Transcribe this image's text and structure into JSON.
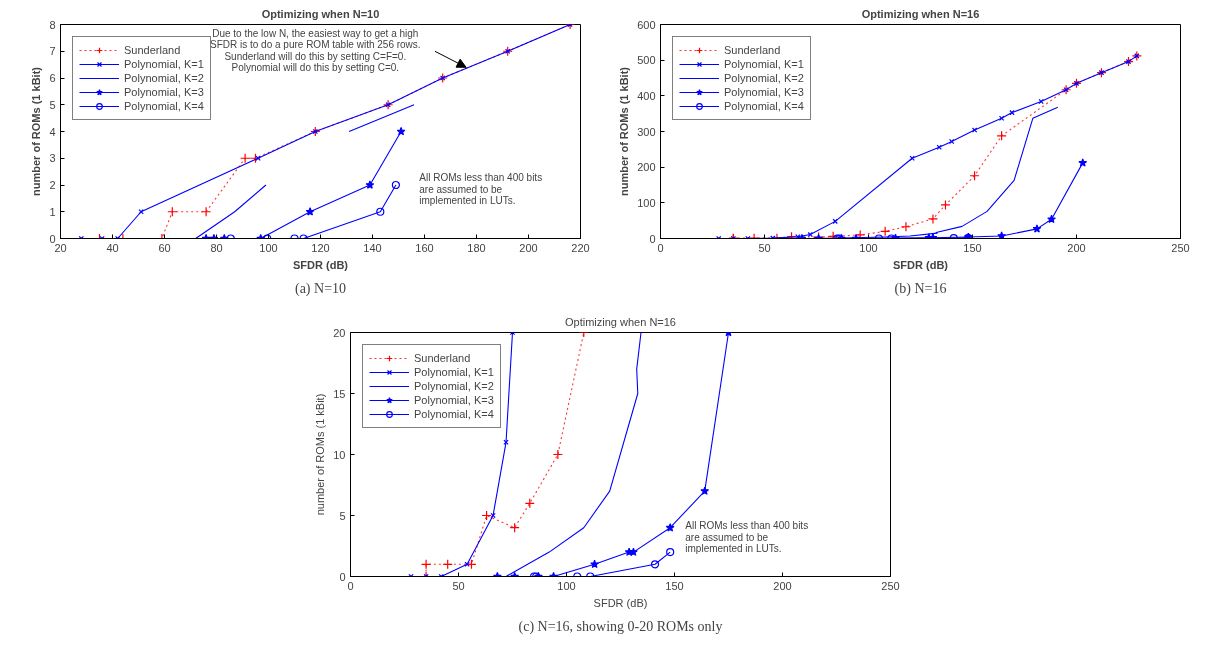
{
  "chart_data": [
    {
      "type": "line",
      "title": "Optimizing when N=10",
      "xlabel": "SFDR (dB)",
      "ylabel": "number of ROMs (1 kBit)",
      "xlim": [
        20,
        220
      ],
      "xticks": [
        20,
        40,
        60,
        80,
        100,
        120,
        140,
        160,
        180,
        200,
        220
      ],
      "ylim": [
        0,
        8
      ],
      "yticks": [
        0,
        1,
        2,
        3,
        4,
        5,
        6,
        7,
        8
      ],
      "legend": "top left",
      "series": [
        {
          "name": "Sunderland",
          "color": "#ff0000",
          "line_style": "dotted",
          "marker": "cross",
          "x": [
            35,
            44,
            59,
            63,
            76,
            91,
            95,
            118,
            146,
            167,
            192,
            216
          ],
          "values": [
            0,
            0,
            0,
            1,
            1,
            3,
            3,
            4,
            5,
            6,
            7,
            8
          ]
        },
        {
          "name": "Polynomial, K=1",
          "color": "#0000ff",
          "line_style": "solid",
          "marker": "x",
          "x": [
            28,
            36,
            42,
            51,
            96,
            118,
            146,
            167,
            192,
            216
          ],
          "values": [
            0,
            0,
            0,
            1,
            3,
            4,
            5,
            6,
            7,
            8
          ]
        },
        {
          "name": "Polynomial, K=2",
          "color": "#0000ff",
          "line_style": "solid",
          "marker": "none",
          "x": [
            28,
            42,
            60,
            68,
            72,
            87,
            99,
            115,
            131,
            156
          ],
          "values": [
            0,
            0,
            0,
            0,
            0,
            1,
            2,
            null,
            4,
            5
          ]
        },
        {
          "name": "Polynomial, K=3",
          "color": "#0000ff",
          "line_style": "solid",
          "marker": "star",
          "x": [
            76,
            79,
            83,
            97,
            116,
            139,
            151
          ],
          "values": [
            0,
            0,
            0,
            0,
            1,
            2,
            4
          ]
        },
        {
          "name": "Polynomial, K=4",
          "color": "#0000ff",
          "line_style": "solid",
          "marker": "circle",
          "x": [
            85.5,
            99.5,
            110,
            113.5,
            143,
            149
          ],
          "values": [
            0,
            0,
            0,
            0,
            1,
            2
          ]
        }
      ],
      "annotations": [
        "Due to the low N, the easiest way to get a high\nSFDR is to do a pure ROM table with 256 rows.\nSunderland will do this by setting C=F=0.\nPolynomial will do this by setting C=0.",
        "All ROMs less than 400 bits\nare assumed to be\nimplemented in LUTs.",
        "(a) N=10"
      ]
    },
    {
      "type": "line",
      "title": "Optimizing when N=16",
      "xlabel": "SFDR (dB)",
      "ylabel": "number of ROMs (1 kBit)",
      "xlim": [
        0,
        250
      ],
      "xticks": [
        0,
        50,
        100,
        150,
        200,
        250
      ],
      "ylim": [
        0,
        600
      ],
      "yticks": [
        0,
        100,
        200,
        300,
        400,
        500,
        600
      ],
      "legend": "top left",
      "series": [
        {
          "name": "Sunderland",
          "color": "#ff0000",
          "line_style": "dotted",
          "marker": "cross",
          "x": [
            35,
            35,
            45,
            56,
            63,
            76,
            83,
            96,
            108,
            118,
            131,
            137,
            151,
            164,
            195,
            200,
            212,
            225,
            229
          ],
          "values": [
            0,
            1,
            1,
            1,
            5,
            4,
            6,
            10,
            20,
            33,
            55,
            94,
            176,
            288,
            417,
            435,
            465,
            496,
            512
          ]
        },
        {
          "name": "Polynomial, K=1",
          "color": "#0000ff",
          "line_style": "solid",
          "marker": "x",
          "x": [
            28,
            35,
            42,
            54,
            66,
            72,
            84,
            121,
            134,
            140,
            151,
            164,
            169,
            183,
            195,
            200,
            212,
            225,
            229
          ],
          "values": [
            0,
            0,
            0,
            1,
            5,
            11,
            48,
            225,
            256,
            272,
            304,
            337,
            353,
            384,
            417,
            435,
            465,
            496,
            512
          ]
        },
        {
          "name": "Polynomial, K=2",
          "color": "#0000ff",
          "line_style": "solid",
          "marker": "none",
          "x": [
            42,
            59,
            72,
            92,
            108,
            120,
            133,
            132.5,
            145,
            157,
            170,
            179,
            191
          ],
          "values": [
            0,
            0,
            0,
            2,
            4,
            7,
            15,
            17,
            34,
            76,
            163,
            337,
            368
          ]
        },
        {
          "name": "Polynomial, K=3",
          "color": "#0000ff",
          "line_style": "solid",
          "marker": "star",
          "x": [
            68,
            76,
            87,
            94,
            113,
            129,
            131,
            148,
            164,
            181,
            188,
            203
          ],
          "values": [
            0,
            0,
            0,
            0,
            1,
            2,
            2,
            4,
            7,
            27,
            54,
            212
          ]
        },
        {
          "name": "Polynomial, K=4",
          "color": "#0000ff",
          "line_style": "solid",
          "marker": "circle",
          "x": [
            85,
            86,
            105,
            111,
            141,
            148
          ],
          "values": [
            0,
            0,
            0,
            0,
            1,
            2
          ]
        }
      ],
      "annotations": [
        "(b) N=16"
      ]
    },
    {
      "type": "line",
      "title": "Optimizing when N=16",
      "xlabel": "SFDR (dB)",
      "ylabel": "number of ROMs (1 kBit)",
      "xlim": [
        0,
        250
      ],
      "xticks": [
        0,
        50,
        100,
        150,
        200,
        250
      ],
      "ylim": [
        0,
        20
      ],
      "yticks": [
        0,
        5,
        10,
        15,
        20
      ],
      "legend": "top left",
      "series": [
        {
          "name": "Sunderland",
          "color": "#ff0000",
          "line_style": "dotted",
          "marker": "cross",
          "x": [
            35,
            35,
            45,
            56,
            63,
            76,
            83,
            96,
            108
          ],
          "values": [
            0,
            1,
            1,
            1,
            5,
            4,
            6,
            10,
            20
          ]
        },
        {
          "name": "Polynomial, K=1",
          "color": "#0000ff",
          "line_style": "solid",
          "marker": "x",
          "x": [
            28,
            35,
            42,
            54,
            66,
            72,
            75
          ],
          "values": [
            0,
            0,
            0,
            1,
            5,
            11,
            20
          ]
        },
        {
          "name": "Polynomial, K=2",
          "color": "#0000ff",
          "line_style": "solid",
          "marker": "none",
          "x": [
            42,
            59,
            72,
            92,
            108,
            120,
            133,
            132.5,
            134.5
          ],
          "values": [
            0,
            0,
            0,
            2,
            4,
            7,
            15,
            17,
            20
          ]
        },
        {
          "name": "Polynomial, K=3",
          "color": "#0000ff",
          "line_style": "solid",
          "marker": "star",
          "x": [
            68,
            76,
            87,
            94,
            113,
            129,
            131,
            148,
            164,
            175
          ],
          "values": [
            0,
            0,
            0,
            0,
            1,
            2,
            2,
            4,
            7,
            20
          ]
        },
        {
          "name": "Polynomial, K=4",
          "color": "#0000ff",
          "line_style": "solid",
          "marker": "circle",
          "x": [
            85,
            86,
            105,
            111,
            141,
            148
          ],
          "values": [
            0,
            0,
            0,
            0,
            1,
            2
          ]
        }
      ],
      "annotations": [
        "All ROMs less than 400 bits\nare assumed to be\nimplemented in LUTs.",
        "(c) N=16, showing 0-20 ROMs only"
      ]
    }
  ]
}
